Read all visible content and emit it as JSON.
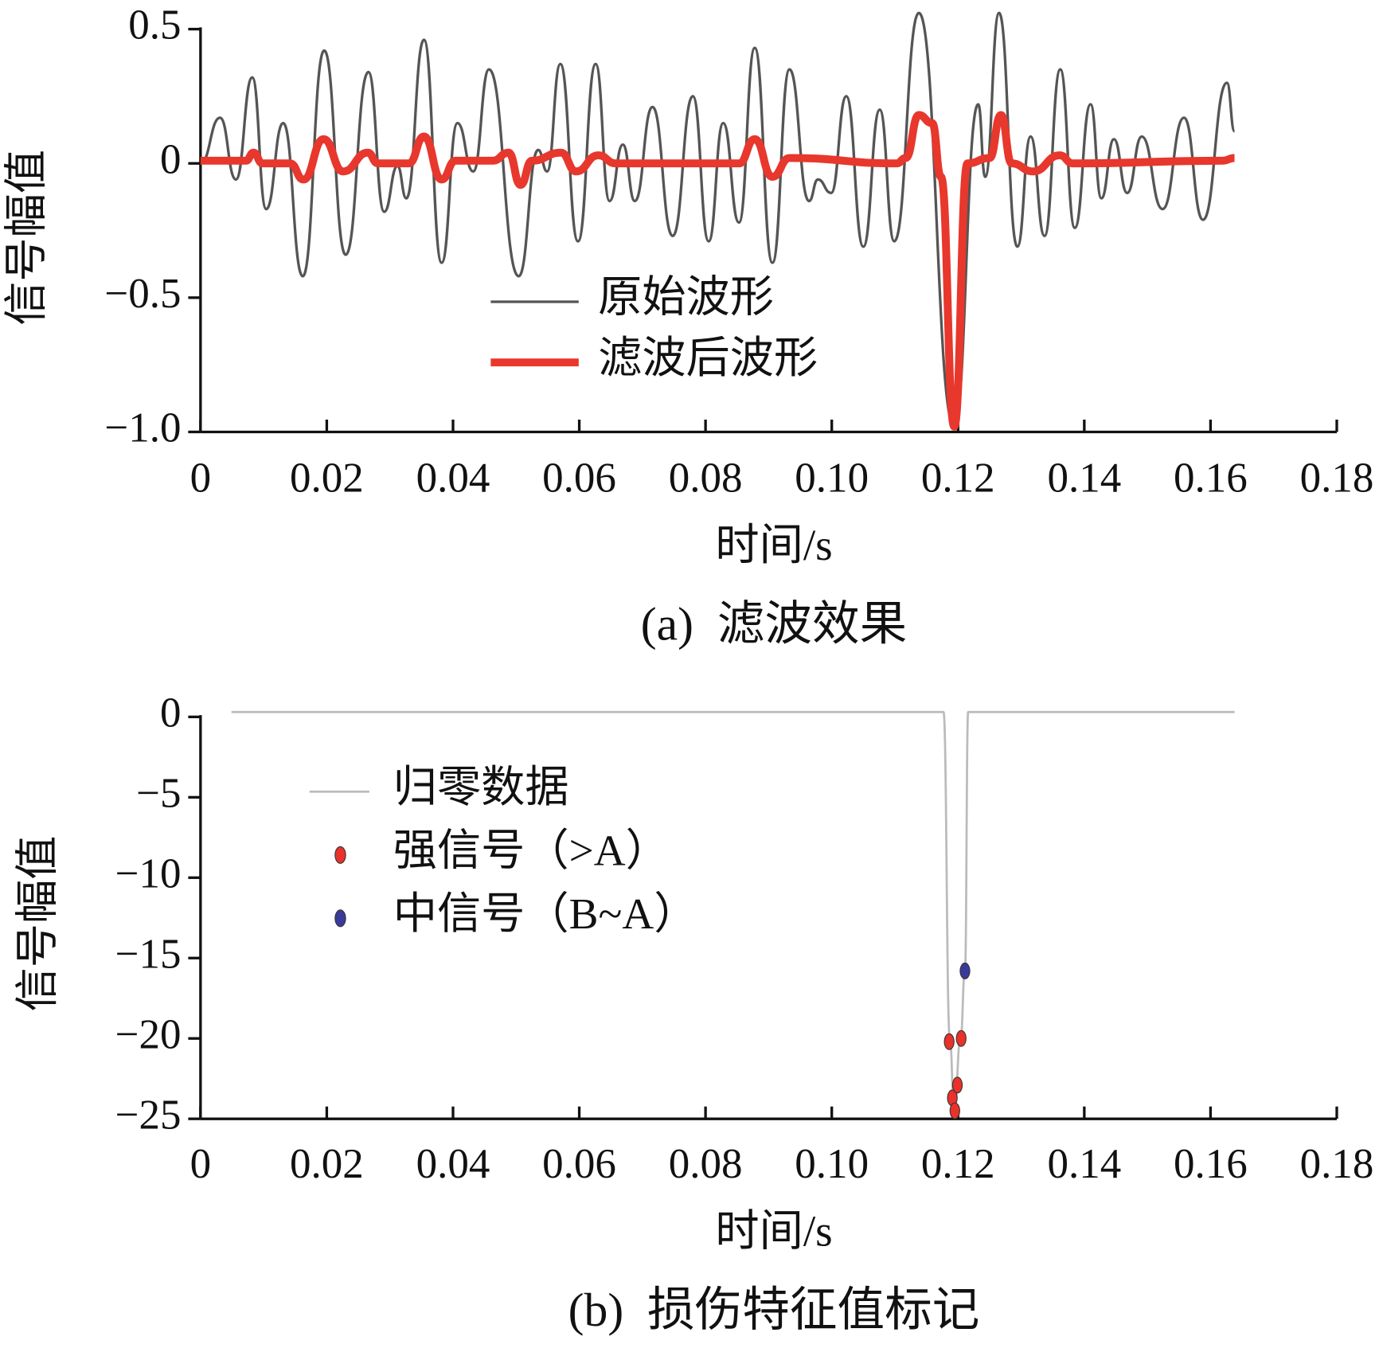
{
  "chart_data": [
    {
      "type": "line",
      "title": "(a)  滤波效果",
      "xlabel": "时间/s",
      "ylabel": "信号幅值",
      "xlim": [
        0,
        0.18
      ],
      "xticks": [
        0,
        0.02,
        0.04,
        0.06,
        0.08,
        {
          "value": 0.1,
          "label": "0.10"
        },
        0.12,
        0.14,
        0.16,
        0.18
      ],
      "ylim": [
        -1.0,
        0.5
      ],
      "yticks": [
        {
          "value": -1.0,
          "label": "−1.0"
        },
        {
          "value": -0.5,
          "label": "−0.5"
        },
        0,
        0.5
      ],
      "series": [
        {
          "name": "原始波形",
          "color": "#555555",
          "x": [
            0,
            0.0031,
            0.0056,
            0.0082,
            0.0104,
            0.0131,
            0.0162,
            0.0196,
            0.023,
            0.0266,
            0.0291,
            0.0312,
            0.0326,
            0.0354,
            0.0382,
            0.0407,
            0.0432,
            0.0457,
            0.0504,
            0.0535,
            0.0549,
            0.057,
            0.0598,
            0.0626,
            0.0648,
            0.0669,
            0.0688,
            0.0716,
            0.0748,
            0.078,
            0.0805,
            0.0828,
            0.0853,
            0.0878,
            0.0906,
            0.0933,
            0.0964,
            0.0978,
            0.0999,
            0.1023,
            0.105,
            0.1076,
            0.1099,
            0.1138,
            0.1194,
            0.1232,
            0.1243,
            0.1265,
            0.1294,
            0.1315,
            0.1337,
            0.1362,
            0.1385,
            0.141,
            0.1427,
            0.1447,
            0.1468,
            0.1491,
            0.1524,
            0.1558,
            0.1588,
            0.1626,
            0.1638
          ],
          "values": [
            0,
            0.17,
            -0.06,
            0.32,
            -0.17,
            0.15,
            -0.42,
            0.42,
            -0.34,
            0.34,
            -0.18,
            -0.01,
            -0.13,
            0.46,
            -0.37,
            0.15,
            -0.03,
            0.35,
            -0.42,
            0.05,
            -0.03,
            0.37,
            -0.29,
            0.37,
            -0.14,
            0.07,
            -0.14,
            0.21,
            -0.27,
            0.25,
            -0.29,
            0.15,
            -0.22,
            0.43,
            -0.37,
            0.35,
            -0.14,
            -0.06,
            -0.11,
            0.25,
            -0.31,
            0.2,
            -0.29,
            0.56,
            -0.98,
            0.22,
            -0.05,
            0.56,
            -0.31,
            0.1,
            -0.27,
            0.35,
            -0.24,
            0.22,
            -0.13,
            0.09,
            -0.11,
            0.1,
            -0.17,
            0.17,
            -0.21,
            0.3,
            0.12
          ]
        },
        {
          "name": "滤波后波形",
          "color": "#e8372c",
          "x": [
            0,
            0.0072,
            0.0084,
            0.0098,
            0.0142,
            0.0163,
            0.0195,
            0.0226,
            0.0265,
            0.0281,
            0.033,
            0.0354,
            0.0382,
            0.0404,
            0.0463,
            0.0488,
            0.0507,
            0.0525,
            0.0571,
            0.0595,
            0.063,
            0.0658,
            0.0853,
            0.0878,
            0.0906,
            0.0933,
            0.1103,
            0.1117,
            0.1138,
            0.1159,
            0.1173,
            0.1194,
            0.1215,
            0.125,
            0.1268,
            0.1285,
            0.1319,
            0.1361,
            0.1382,
            0.1619,
            0.1638
          ],
          "values": [
            0.01,
            0.01,
            0.04,
            0,
            0,
            -0.06,
            0.09,
            -0.03,
            0.04,
            0,
            0,
            0.1,
            -0.06,
            0.01,
            0.01,
            0.04,
            -0.08,
            0.01,
            0.04,
            -0.03,
            0.03,
            0,
            0,
            0.09,
            -0.05,
            0.02,
            0,
            0.02,
            0.18,
            0.15,
            -0.05,
            -0.98,
            0,
            0.02,
            0.18,
            0,
            -0.03,
            0.03,
            0,
            0.01,
            0.02
          ]
        }
      ]
    },
    {
      "type": "line",
      "title": "(b)  损伤特征值标记",
      "xlabel": "时间/s",
      "ylabel": "信号幅值",
      "xlim": [
        0,
        0.18
      ],
      "xticks": [
        0,
        0.02,
        0.04,
        0.06,
        0.08,
        {
          "value": 0.1,
          "label": "0.10"
        },
        0.12,
        0.14,
        0.16,
        0.18
      ],
      "ylim": [
        -25,
        0
      ],
      "yticks": [
        {
          "value": -25,
          "label": "−25"
        },
        {
          "value": -20,
          "label": "−20"
        },
        {
          "value": -15,
          "label": "−15"
        },
        {
          "value": -10,
          "label": "−10"
        },
        {
          "value": -5,
          "label": "−5"
        },
        0
      ],
      "series": [
        {
          "name": "归零数据",
          "color": "#bbbbbb",
          "x": [
            0.0049,
            0.1177,
            0.1187,
            0.1194,
            0.1204,
            0.1211,
            0.1216,
            0.1638
          ],
          "values": [
            0.3,
            0.3,
            -20,
            -24.5,
            -20,
            -15.8,
            0.3,
            0.3
          ]
        },
        {
          "name": "强信号（>A）",
          "color": "#e8322a",
          "type": "scatter",
          "x": [
            0.1186,
            0.1191,
            0.1195,
            0.1199,
            0.1205
          ],
          "values": [
            -20.2,
            -23.7,
            -24.5,
            -22.9,
            -20.0
          ]
        },
        {
          "name": "中信号（B~A）",
          "color": "#3a3a9a",
          "type": "scatter",
          "x": [
            0.1211
          ],
          "values": [
            -15.8
          ]
        }
      ]
    }
  ]
}
